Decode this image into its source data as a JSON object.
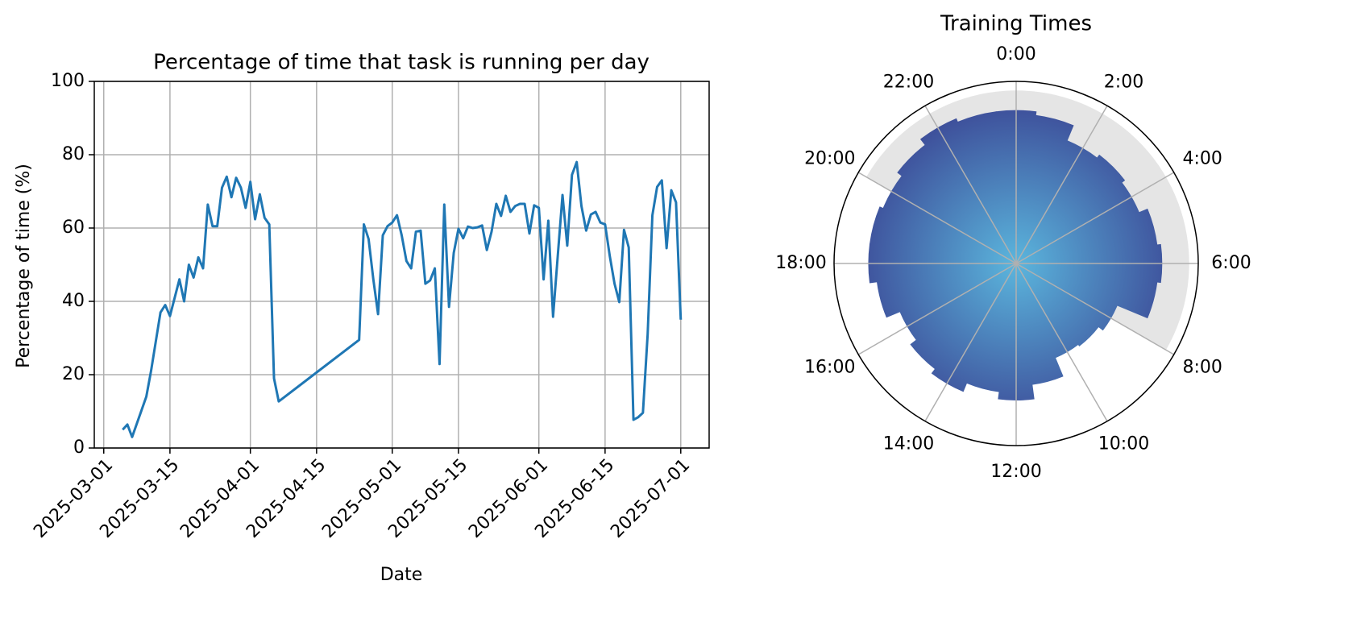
{
  "chart_data": [
    {
      "type": "line",
      "title": "Percentage of time that task is running per day",
      "xlabel": "Date",
      "ylabel": "Percentage of time (%)",
      "x": [
        "2025-03-05",
        "2025-03-06",
        "2025-03-07",
        "2025-03-10",
        "2025-03-11",
        "2025-03-12",
        "2025-03-13",
        "2025-03-14",
        "2025-03-15",
        "2025-03-16",
        "2025-03-17",
        "2025-03-18",
        "2025-03-19",
        "2025-03-20",
        "2025-03-21",
        "2025-03-22",
        "2025-03-23",
        "2025-03-24",
        "2025-03-25",
        "2025-03-26",
        "2025-03-27",
        "2025-03-28",
        "2025-03-29",
        "2025-03-30",
        "2025-03-31",
        "2025-04-01",
        "2025-04-02",
        "2025-04-03",
        "2025-04-04",
        "2025-04-05",
        "2025-04-06",
        "2025-04-07",
        "2025-04-24",
        "2025-04-25",
        "2025-04-26",
        "2025-04-27",
        "2025-04-28",
        "2025-04-29",
        "2025-04-30",
        "2025-05-01",
        "2025-05-02",
        "2025-05-03",
        "2025-05-04",
        "2025-05-05",
        "2025-05-06",
        "2025-05-07",
        "2025-05-08",
        "2025-05-09",
        "2025-05-10",
        "2025-05-11",
        "2025-05-12",
        "2025-05-13",
        "2025-05-14",
        "2025-05-15",
        "2025-05-16",
        "2025-05-17",
        "2025-05-18",
        "2025-05-19",
        "2025-05-20",
        "2025-05-21",
        "2025-05-22",
        "2025-05-23",
        "2025-05-24",
        "2025-05-25",
        "2025-05-26",
        "2025-05-27",
        "2025-05-28",
        "2025-05-29",
        "2025-05-30",
        "2025-05-31",
        "2025-06-01",
        "2025-06-02",
        "2025-06-03",
        "2025-06-04",
        "2025-06-05",
        "2025-06-06",
        "2025-06-07",
        "2025-06-08",
        "2025-06-09",
        "2025-06-10",
        "2025-06-11",
        "2025-06-12",
        "2025-06-13",
        "2025-06-14",
        "2025-06-15",
        "2025-06-16",
        "2025-06-17",
        "2025-06-18",
        "2025-06-19",
        "2025-06-20",
        "2025-06-21",
        "2025-06-22",
        "2025-06-23",
        "2025-06-24",
        "2025-06-25",
        "2025-06-26",
        "2025-06-27",
        "2025-06-28",
        "2025-06-29",
        "2025-06-30",
        "2025-07-01"
      ],
      "values": [
        5,
        6.4,
        3,
        14,
        21,
        29,
        37,
        39,
        36,
        41,
        46,
        40,
        50,
        46.5,
        52,
        49,
        66.4,
        60.5,
        60.5,
        71,
        74,
        68.4,
        73.7,
        71,
        65.5,
        72.6,
        62.4,
        69.2,
        62.8,
        61,
        19,
        12.7,
        29.5,
        61,
        57,
        46,
        36.5,
        58,
        60.5,
        61.5,
        63.5,
        58,
        51,
        49,
        59,
        59.3,
        44.8,
        45.7,
        49,
        22.9,
        66.4,
        38.5,
        53.2,
        59.8,
        57.2,
        60.4,
        60,
        60.2,
        60.7,
        54,
        59,
        66.6,
        63.3,
        68.8,
        64.4,
        66,
        66.6,
        66.6,
        58.5,
        66.2,
        65.5,
        46,
        62,
        35.8,
        52.5,
        69,
        55.2,
        74.5,
        78,
        66,
        59.3,
        63.7,
        64.4,
        61.5,
        61,
        52.3,
        44.8,
        39.8,
        59.5,
        54.7,
        7.7,
        8.4,
        9.6,
        31,
        63.5,
        71.2,
        73,
        54.5,
        70.3,
        67,
        35
      ],
      "color": "#1f77b4",
      "xlim": [
        "2025-02-27",
        "2025-07-07"
      ],
      "xticks": [
        "2025-03-01",
        "2025-03-15",
        "2025-04-01",
        "2025-04-15",
        "2025-05-01",
        "2025-05-15",
        "2025-06-01",
        "2025-06-15",
        "2025-07-01"
      ],
      "ylim": [
        0,
        100
      ],
      "yticks": [
        0,
        20,
        40,
        60,
        80,
        100
      ],
      "grid": true
    },
    {
      "type": "polar",
      "title": "Training Times",
      "x": [
        0,
        1,
        2,
        3,
        4,
        5,
        6,
        7,
        8,
        9,
        10,
        11,
        12,
        13,
        14,
        15,
        16,
        17,
        18,
        19,
        20,
        21,
        22,
        23
      ],
      "values": [
        0.84,
        0.82,
        0.73,
        0.75,
        0.73,
        0.78,
        0.8,
        0.78,
        0.6,
        0.57,
        0.56,
        0.67,
        0.75,
        0.71,
        0.76,
        0.73,
        0.69,
        0.77,
        0.81,
        0.81,
        0.79,
        0.82,
        0.86,
        0.84
      ],
      "xlim": [
        0,
        24
      ],
      "rlim": [
        0,
        1
      ],
      "xticks": [
        {
          "value": 0,
          "label": "0:00"
        },
        {
          "value": 2,
          "label": "2:00"
        },
        {
          "value": 4,
          "label": "4:00"
        },
        {
          "value": 6,
          "label": "6:00"
        },
        {
          "value": 8,
          "label": "8:00"
        },
        {
          "value": 10,
          "label": "10:00"
        },
        {
          "value": 12,
          "label": "12:00"
        },
        {
          "value": 14,
          "label": "14:00"
        },
        {
          "value": 16,
          "label": "16:00"
        },
        {
          "value": 18,
          "label": "18:00"
        },
        {
          "value": 20,
          "label": "20:00"
        },
        {
          "value": 22,
          "label": "22:00"
        }
      ],
      "colors": [
        "#5bb6dd",
        "#3d4d99"
      ],
      "shaded_hours": [
        20,
        8
      ]
    }
  ]
}
